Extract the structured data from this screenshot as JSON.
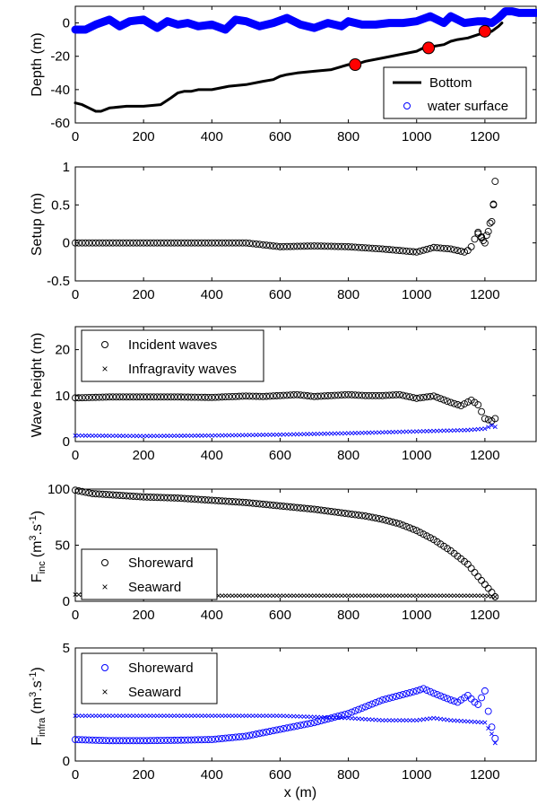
{
  "colors": {
    "bottom": "#000000",
    "water": "#0000ff",
    "markers": "#ff0000",
    "incident": "#000000",
    "infra": "#0000ff",
    "flux_inc": "#000000",
    "flux_infra": "#0000ff"
  },
  "chart_data": [
    {
      "type": "line",
      "panel": "depth",
      "ylabel": "Depth (m)",
      "xlim": [
        0,
        1350
      ],
      "ylim": [
        -60,
        10
      ],
      "xticks": [
        "0",
        "200",
        "400",
        "600",
        "800",
        "1000",
        "1200"
      ],
      "yticks": [
        "0",
        "-20",
        "-40",
        "-60"
      ],
      "legend_position": "bottom-right",
      "series": [
        {
          "name": "Bottom",
          "style": "line",
          "x": [
            0,
            20,
            40,
            60,
            75,
            100,
            150,
            200,
            250,
            280,
            300,
            320,
            340,
            360,
            400,
            450,
            500,
            550,
            580,
            600,
            620,
            650,
            700,
            750,
            800,
            820,
            850,
            900,
            950,
            1000,
            1020,
            1050,
            1080,
            1100,
            1120,
            1150,
            1180,
            1200,
            1220,
            1240,
            1250
          ],
          "y": [
            -48,
            -49,
            -51,
            -53,
            -53,
            -51,
            -50,
            -50,
            -49,
            -45,
            -42,
            -41,
            -41,
            -40,
            -40,
            -38,
            -37,
            -35,
            -34,
            -32,
            -31,
            -30,
            -29,
            -28,
            -25,
            -25,
            -23,
            -21,
            -19,
            -17,
            -15,
            -14,
            -13,
            -11,
            -10,
            -9,
            -7,
            -6,
            -5,
            -2,
            0
          ]
        },
        {
          "name": "water surface",
          "style": "thick-line",
          "x": [
            0,
            30,
            60,
            100,
            130,
            160,
            200,
            240,
            270,
            300,
            330,
            360,
            400,
            440,
            470,
            500,
            540,
            580,
            620,
            660,
            700,
            740,
            780,
            800,
            840,
            880,
            920,
            960,
            1000,
            1040,
            1080,
            1100,
            1140,
            1180,
            1200,
            1220,
            1240,
            1260,
            1280,
            1300,
            1320,
            1350
          ],
          "y": [
            -4,
            -4,
            -1,
            2,
            -2,
            1,
            2,
            -3,
            1,
            -1,
            0,
            -2,
            -1,
            -4,
            2,
            1,
            -2,
            0,
            3,
            -1,
            -3,
            0,
            -2,
            1,
            -1,
            -1,
            0,
            0,
            1,
            4,
            0,
            4,
            0,
            1,
            1,
            0,
            3,
            7,
            7,
            6,
            6,
            6
          ]
        },
        {
          "name": "",
          "style": "red-markers",
          "x": [
            820,
            1035,
            1200
          ],
          "y": [
            -25,
            -15,
            -5
          ]
        }
      ]
    },
    {
      "type": "scatter",
      "panel": "setup",
      "ylabel": "Setup (m)",
      "xlim": [
        0,
        1350
      ],
      "ylim": [
        -0.5,
        1
      ],
      "xticks": [
        "0",
        "200",
        "400",
        "600",
        "800",
        "1000",
        "1200"
      ],
      "yticks": [
        "1",
        "0.5",
        "0",
        "-0.5"
      ],
      "series": [
        {
          "name": "",
          "marker": "circle",
          "x": [
            0,
            200,
            400,
            500,
            600,
            700,
            800,
            900,
            1000,
            1050,
            1100,
            1140,
            1150,
            1160,
            1170,
            1180,
            1190,
            1200,
            1210,
            1220,
            1225
          ],
          "y": [
            0.0,
            0.0,
            0.0,
            0.0,
            -0.05,
            -0.04,
            -0.05,
            -0.08,
            -0.12,
            -0.06,
            -0.08,
            -0.12,
            -0.1,
            -0.05,
            0.05,
            0.12,
            0.08,
            0.0,
            0.15,
            0.28,
            0.5
          ]
        },
        {
          "name": "",
          "marker": "circle",
          "x": [
            1180,
            1195,
            1205,
            1215,
            1225,
            1230
          ],
          "y": [
            0.14,
            0.03,
            0.1,
            0.26,
            0.51,
            0.81
          ]
        }
      ]
    },
    {
      "type": "scatter",
      "panel": "wave-height",
      "ylabel": "Wave height (m)",
      "xlim": [
        0,
        1350
      ],
      "ylim": [
        0,
        25
      ],
      "xticks": [
        "0",
        "200",
        "400",
        "600",
        "800",
        "1000",
        "1200"
      ],
      "yticks": [
        "20",
        "10",
        "0"
      ],
      "legend_position": "top-left",
      "series": [
        {
          "name": "Incident waves",
          "marker": "circle",
          "x": [
            0,
            100,
            200,
            300,
            400,
            500,
            550,
            600,
            650,
            700,
            750,
            800,
            850,
            900,
            950,
            1000,
            1050,
            1100,
            1130,
            1160,
            1180,
            1200,
            1220,
            1230
          ],
          "y": [
            9.5,
            9.7,
            9.7,
            9.7,
            9.6,
            9.9,
            9.8,
            10,
            10.2,
            9.8,
            10,
            10.2,
            10,
            10,
            10.2,
            9.4,
            9.9,
            8.5,
            7.8,
            9,
            8,
            5,
            4.5,
            5
          ]
        },
        {
          "name": "Infragravity waves",
          "marker": "x",
          "x": [
            0,
            200,
            400,
            600,
            800,
            900,
            1000,
            1100,
            1150,
            1200,
            1220,
            1230
          ],
          "y": [
            1.3,
            1.2,
            1.3,
            1.5,
            1.8,
            2,
            2.2,
            2.4,
            2.5,
            2.8,
            3.5,
            3.2
          ]
        }
      ]
    },
    {
      "type": "scatter",
      "panel": "flux-incident",
      "ylabel": "F",
      "ylabel_sub": "inc",
      "ylabel_unit": "(m",
      "ylabel_sup1": "3",
      "ylabel_mid": ".s",
      "ylabel_sup2": "-1",
      "ylabel_end": ")",
      "xlim": [
        0,
        1350
      ],
      "ylim": [
        0,
        100
      ],
      "xticks": [
        "0",
        "200",
        "400",
        "600",
        "800",
        "1000",
        "1200"
      ],
      "yticks": [
        "100",
        "50",
        "0"
      ],
      "legend_position": "bottom-left",
      "series": [
        {
          "name": "Shoreward",
          "marker": "circle",
          "x": [
            0,
            50,
            100,
            200,
            300,
            400,
            500,
            600,
            700,
            800,
            850,
            900,
            950,
            1000,
            1050,
            1100,
            1150,
            1180,
            1200,
            1220,
            1230
          ],
          "y": [
            99,
            96,
            95,
            93,
            92,
            90,
            88,
            85,
            82,
            78,
            76,
            73,
            69,
            63,
            55,
            45,
            33,
            22,
            15,
            8,
            4
          ]
        },
        {
          "name": "Seaward",
          "marker": "x",
          "x": [
            0,
            200,
            400,
            600,
            800,
            1000,
            1200,
            1230
          ],
          "y": [
            6,
            5,
            5,
            5,
            5,
            5,
            5,
            4
          ]
        }
      ]
    },
    {
      "type": "scatter",
      "panel": "flux-infra",
      "ylabel": "F",
      "ylabel_sub": "infra",
      "ylabel_unit": "(m",
      "ylabel_sup1": "3",
      "ylabel_mid": ".s",
      "ylabel_sup2": "-1",
      "ylabel_end": ")",
      "xlabel": "x (m)",
      "xlim": [
        0,
        1350
      ],
      "ylim": [
        0,
        5
      ],
      "xticks": [
        "0",
        "200",
        "400",
        "600",
        "800",
        "1000",
        "1200"
      ],
      "yticks": [
        "5",
        "0"
      ],
      "legend_position": "top-left",
      "series": [
        {
          "name": "Shoreward",
          "marker": "circle",
          "x": [
            0,
            100,
            200,
            300,
            400,
            500,
            550,
            600,
            650,
            700,
            750,
            800,
            850,
            900,
            950,
            1000,
            1020,
            1050,
            1100,
            1120,
            1150,
            1170,
            1180,
            1200,
            1210,
            1220,
            1230
          ],
          "y": [
            0.95,
            0.9,
            0.9,
            0.92,
            0.95,
            1.1,
            1.25,
            1.4,
            1.55,
            1.7,
            1.9,
            2.1,
            2.4,
            2.7,
            2.9,
            3.1,
            3.2,
            3.0,
            2.7,
            2.6,
            2.9,
            2.6,
            2.5,
            3.1,
            2.2,
            1.5,
            1.0
          ]
        },
        {
          "name": "Seaward",
          "marker": "x",
          "x": [
            0,
            100,
            200,
            300,
            400,
            500,
            600,
            700,
            800,
            900,
            1000,
            1050,
            1100,
            1150,
            1200,
            1220,
            1230
          ],
          "y": [
            2.0,
            2.0,
            2.0,
            2.0,
            2.0,
            2.0,
            2.0,
            1.95,
            1.9,
            1.8,
            1.8,
            1.9,
            1.8,
            1.75,
            1.7,
            1.2,
            0.8
          ]
        }
      ]
    }
  ]
}
